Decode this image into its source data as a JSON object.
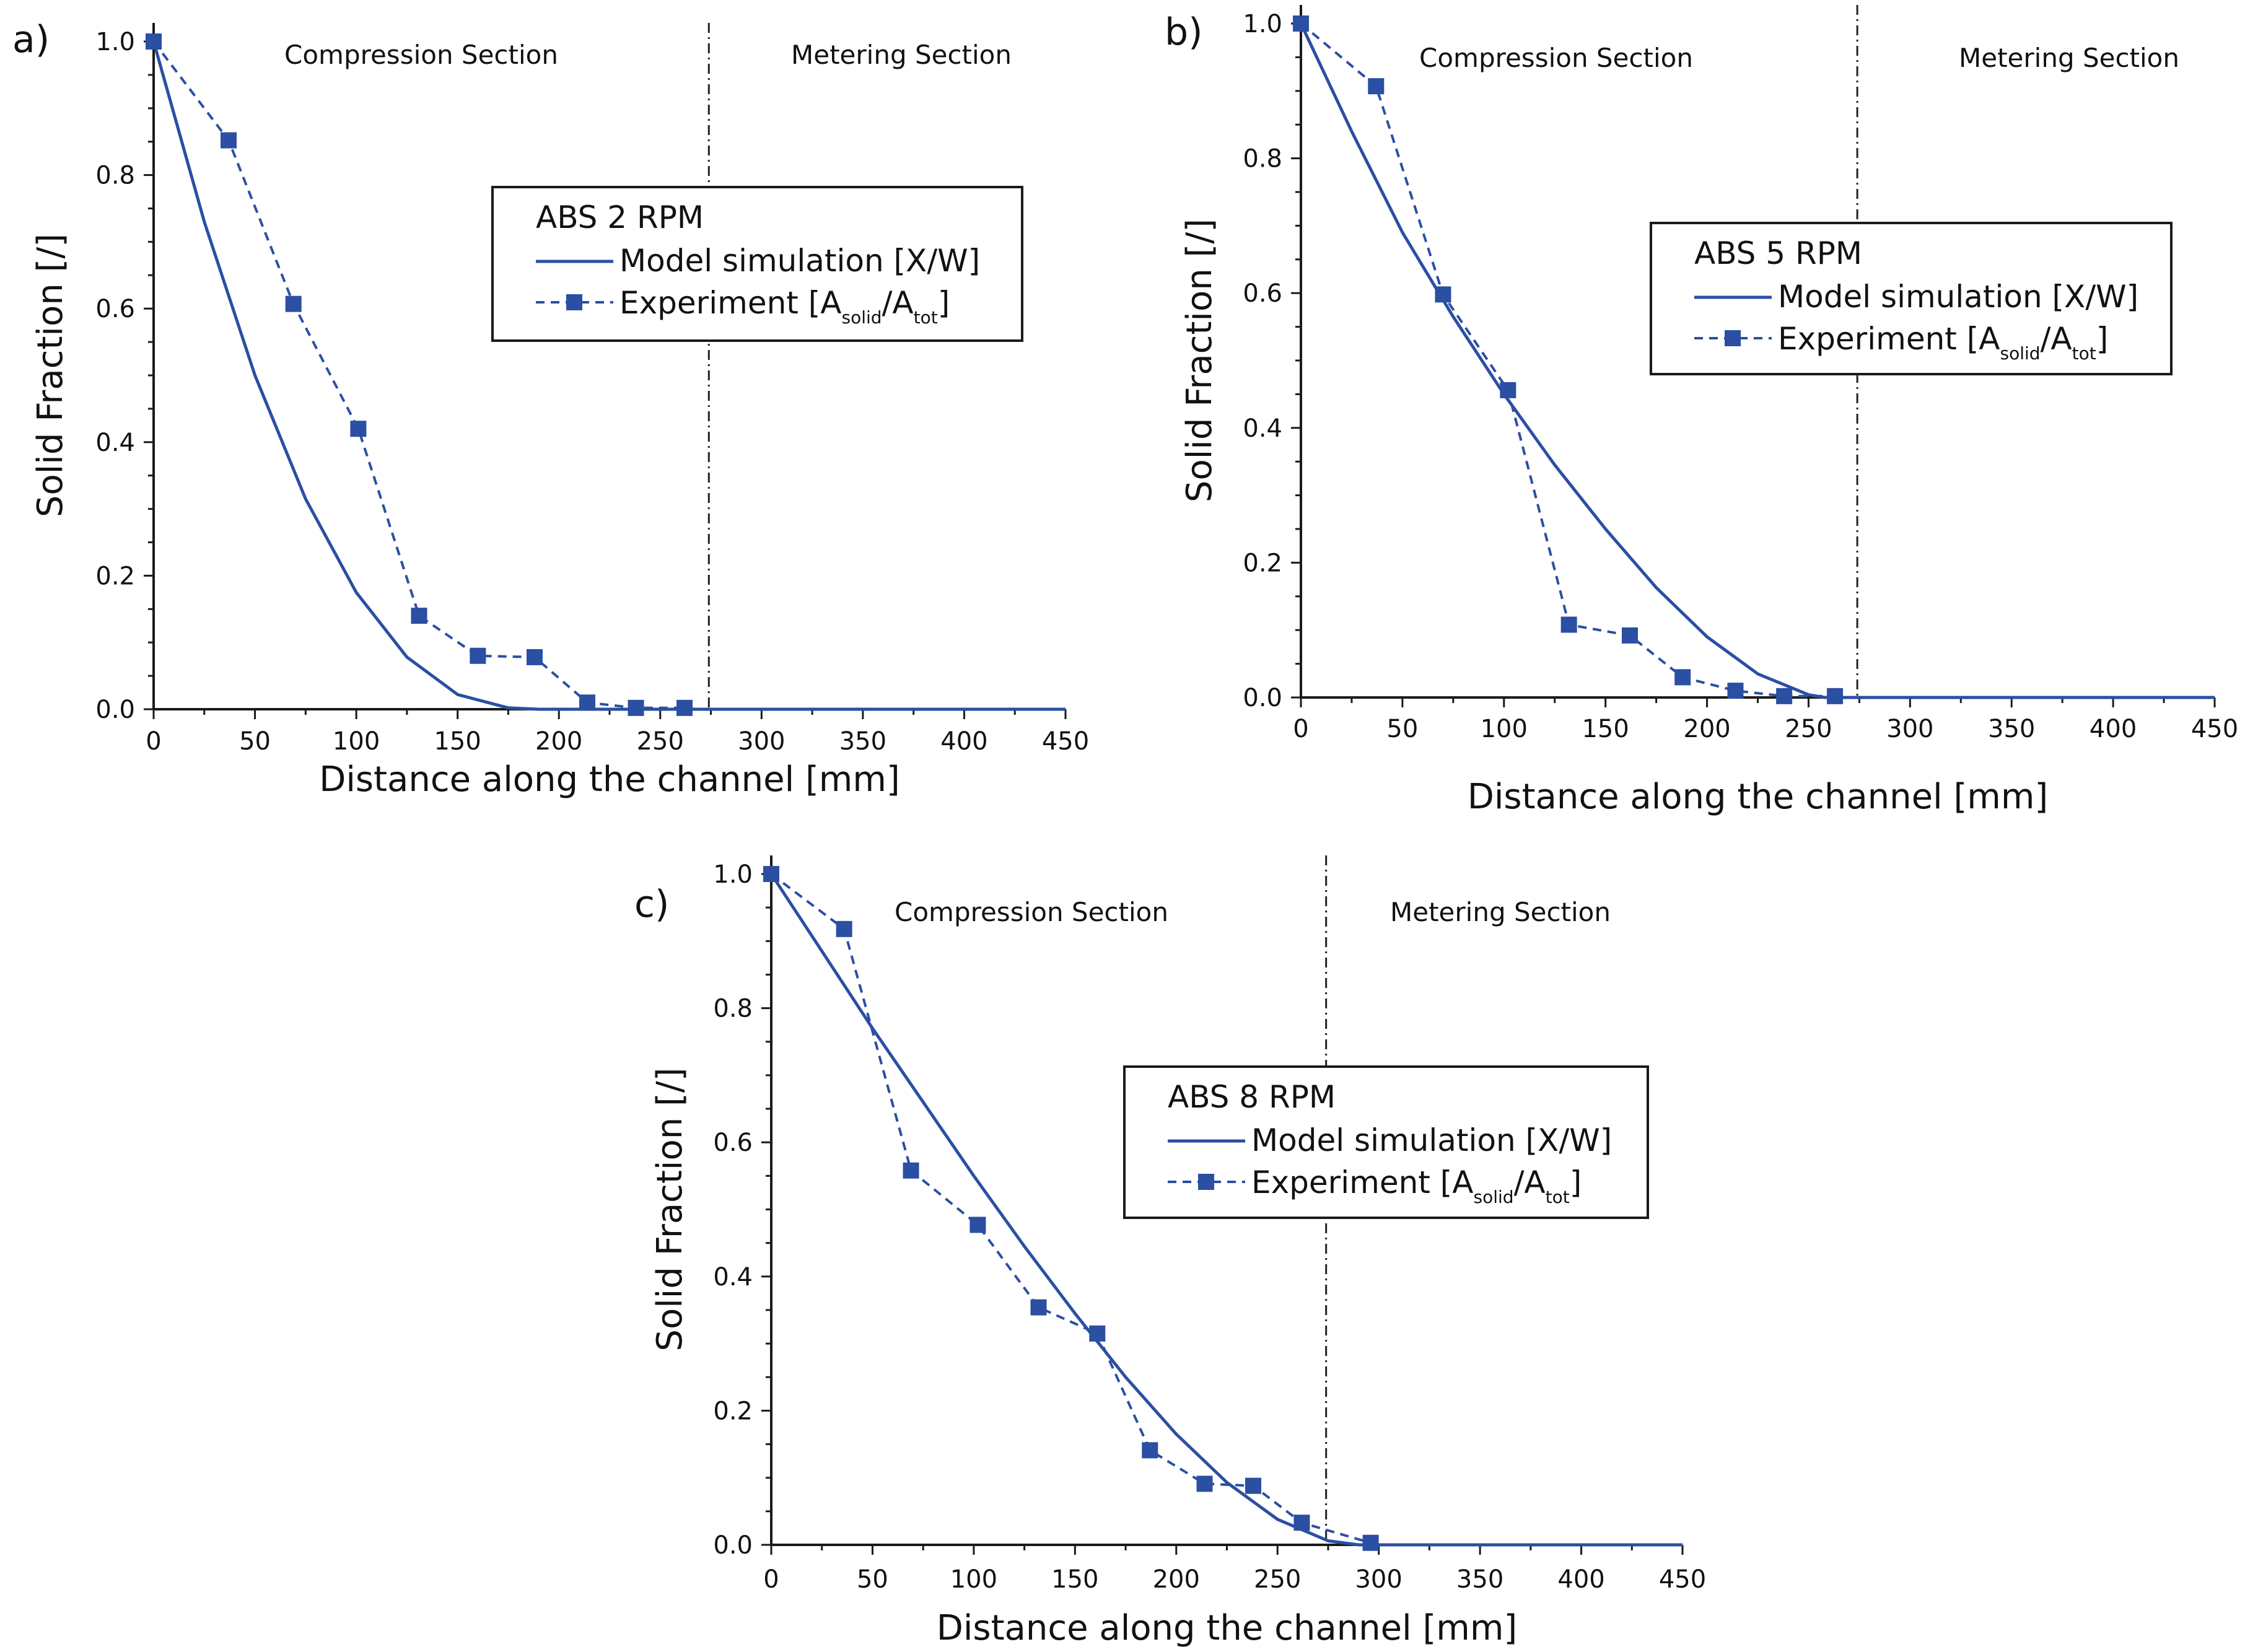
{
  "colors": {
    "series": "#2a4fa3",
    "axis": "#1a1a1a",
    "background": "#ffffff"
  },
  "chart_data": [
    {
      "type": "line",
      "panel_label": "a)",
      "title": "ABS 2 RPM",
      "xlabel": "Distance along the channel [mm]",
      "ylabel": "Solid Fraction [/]",
      "xlim": [
        0,
        450
      ],
      "ylim": [
        0,
        1.0
      ],
      "xticks": [
        "0",
        "50",
        "100",
        "150",
        "200",
        "250",
        "300",
        "350",
        "400",
        "450"
      ],
      "yticks": [
        "0.0",
        "0.2",
        "0.4",
        "0.6",
        "0.8",
        "1.0"
      ],
      "section_boundary": 274,
      "annotations": {
        "left_section": "Compression Section",
        "right_section": "Metering Section"
      },
      "legend": {
        "title": "ABS 2 RPM",
        "model": "Model simulation [X/W]",
        "experiment": "Experiment [A",
        "sub1": "solid",
        "mid": "/A",
        "sub2": "tot",
        "close": "]"
      },
      "series": [
        {
          "name": "Model simulation [X/W]",
          "style": "solid",
          "x": [
            0,
            25,
            50,
            75,
            100,
            125,
            150,
            175,
            190,
            200,
            225,
            250,
            274,
            300,
            350,
            400,
            450
          ],
          "y": [
            1.0,
            0.73,
            0.5,
            0.315,
            0.175,
            0.078,
            0.022,
            0.002,
            0,
            0,
            0,
            0,
            0,
            0,
            0,
            0,
            0
          ]
        },
        {
          "name": "Experiment [Asolid/Atot]",
          "style": "dashed-square",
          "x": [
            0,
            37,
            69,
            101,
            131,
            160,
            188,
            214,
            238,
            262
          ],
          "y": [
            1.0,
            0.852,
            0.607,
            0.42,
            0.14,
            0.08,
            0.078,
            0.01,
            0.002,
            0.002
          ]
        }
      ]
    },
    {
      "type": "line",
      "panel_label": "b)",
      "title": "ABS 5 RPM",
      "xlabel": "Distance along the channel [mm]",
      "ylabel": "Solid Fraction [/]",
      "xlim": [
        0,
        450
      ],
      "ylim": [
        0,
        1.0
      ],
      "xticks": [
        "0",
        "50",
        "100",
        "150",
        "200",
        "250",
        "300",
        "350",
        "400",
        "450"
      ],
      "yticks": [
        "0.0",
        "0.2",
        "0.4",
        "0.6",
        "0.8",
        "1.0"
      ],
      "section_boundary": 274,
      "annotations": {
        "left_section": "Compression Section",
        "right_section": "Metering Section"
      },
      "legend": {
        "title": "ABS 5 RPM",
        "model": "Model simulation [X/W]",
        "experiment": "Experiment [A",
        "sub1": "solid",
        "mid": "/A",
        "sub2": "tot",
        "close": "]"
      },
      "series": [
        {
          "name": "Model simulation [X/W]",
          "style": "solid",
          "x": [
            0,
            25,
            50,
            75,
            100,
            125,
            150,
            175,
            200,
            225,
            250,
            258,
            274,
            300,
            350,
            400,
            450
          ],
          "y": [
            1.0,
            0.84,
            0.69,
            0.565,
            0.45,
            0.345,
            0.25,
            0.163,
            0.09,
            0.035,
            0.004,
            0,
            0,
            0,
            0,
            0,
            0
          ]
        },
        {
          "name": "Experiment [Asolid/Atot]",
          "style": "dashed-square",
          "x": [
            0,
            37,
            70,
            102,
            132,
            162,
            188,
            214,
            238,
            263
          ],
          "y": [
            1.0,
            0.907,
            0.598,
            0.456,
            0.108,
            0.092,
            0.03,
            0.01,
            0.002,
            0.002
          ]
        }
      ]
    },
    {
      "type": "line",
      "panel_label": "c)",
      "title": "ABS 8 RPM",
      "xlabel": "Distance along the channel [mm]",
      "ylabel": "Solid Fraction [/]",
      "xlim": [
        0,
        450
      ],
      "ylim": [
        0,
        1.0
      ],
      "xticks": [
        "0",
        "50",
        "100",
        "150",
        "200",
        "250",
        "300",
        "350",
        "400",
        "450"
      ],
      "yticks": [
        "0.0",
        "0.2",
        "0.4",
        "0.6",
        "0.8",
        "1.0"
      ],
      "section_boundary": 274,
      "annotations": {
        "left_section": "Compression Section",
        "right_section": "Metering Section"
      },
      "legend": {
        "title": "ABS 8 RPM",
        "model": "Model simulation [X/W]",
        "experiment": "Experiment [A",
        "sub1": "solid",
        "mid": "/A",
        "sub2": "tot",
        "close": "]"
      },
      "series": [
        {
          "name": "Model simulation [X/W]",
          "style": "solid",
          "x": [
            0,
            25,
            50,
            75,
            100,
            125,
            150,
            175,
            200,
            225,
            250,
            275,
            290,
            300,
            350,
            400,
            450
          ],
          "y": [
            1.0,
            0.885,
            0.77,
            0.66,
            0.55,
            0.445,
            0.345,
            0.25,
            0.165,
            0.093,
            0.038,
            0.006,
            0,
            0,
            0,
            0,
            0
          ]
        },
        {
          "name": "Experiment [Asolid/Atot]",
          "style": "dashed-square",
          "x": [
            0,
            36,
            69,
            102,
            132,
            161,
            187,
            214,
            238,
            262,
            296
          ],
          "y": [
            1.0,
            0.918,
            0.558,
            0.477,
            0.354,
            0.315,
            0.141,
            0.091,
            0.088,
            0.033,
            0.003
          ]
        }
      ]
    }
  ]
}
